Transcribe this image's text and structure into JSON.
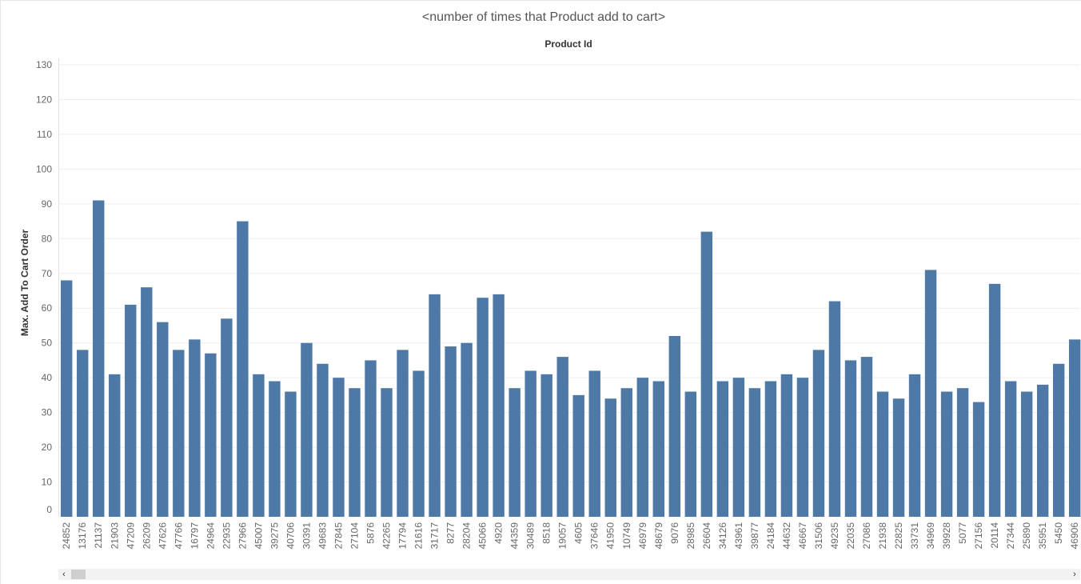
{
  "chart_data": {
    "type": "bar",
    "title": "<number of times that Product add to cart>",
    "header_label": "Product Id",
    "ylabel": "Max. Add To Cart Order",
    "ylim": [
      0,
      130
    ],
    "yticks": [
      0,
      10,
      20,
      30,
      40,
      50,
      60,
      70,
      80,
      90,
      100,
      110,
      120,
      130
    ],
    "grid": true,
    "bar_color": "#4e79a7",
    "categories": [
      "24852",
      "13176",
      "21137",
      "21903",
      "47209",
      "26209",
      "47626",
      "47766",
      "16797",
      "24964",
      "22935",
      "27966",
      "45007",
      "39275",
      "40706",
      "30391",
      "49683",
      "27845",
      "27104",
      "5876",
      "42265",
      "17794",
      "21616",
      "31717",
      "8277",
      "28204",
      "45066",
      "4920",
      "44359",
      "30489",
      "8518",
      "19057",
      "4605",
      "37646",
      "41950",
      "10749",
      "46979",
      "48679",
      "9076",
      "28985",
      "26604",
      "34126",
      "43961",
      "39877",
      "24184",
      "44632",
      "46667",
      "31506",
      "49235",
      "22035",
      "27086",
      "21938",
      "22825",
      "33731",
      "34969",
      "39928",
      "5077",
      "27156",
      "20114",
      "27344",
      "25890",
      "35951",
      "5450",
      "46906"
    ],
    "values": [
      68,
      48,
      91,
      41,
      61,
      66,
      56,
      48,
      51,
      47,
      57,
      85,
      41,
      39,
      36,
      50,
      44,
      40,
      37,
      45,
      37,
      48,
      42,
      64,
      49,
      50,
      63,
      64,
      37,
      42,
      41,
      46,
      35,
      42,
      34,
      37,
      40,
      39,
      52,
      36,
      82,
      39,
      40,
      37,
      39,
      41,
      40,
      48,
      62,
      45,
      46,
      36,
      34,
      41,
      71,
      36,
      37,
      33,
      67,
      39,
      36,
      38,
      44,
      51
    ]
  },
  "scrollbar": {
    "left_arrow": "‹",
    "right_arrow": "›"
  }
}
